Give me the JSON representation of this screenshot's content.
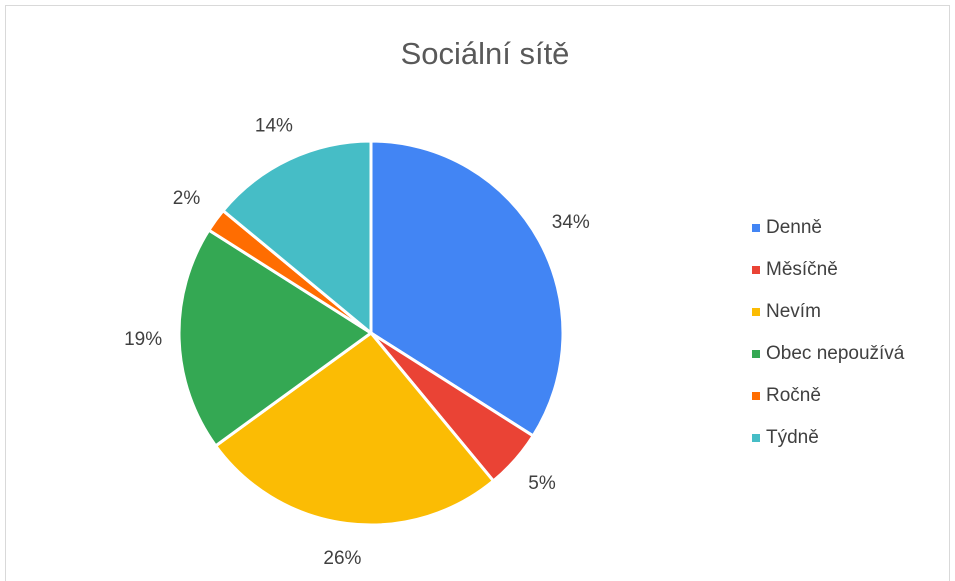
{
  "chart_data": {
    "type": "pie",
    "title": "Sociální sítě",
    "categories": [
      "Denně",
      "Měsíčně",
      "Nevím",
      "Obec nepoužívá",
      "Ročně",
      "Týdně"
    ],
    "values": [
      34,
      5,
      26,
      19,
      2,
      14
    ],
    "value_labels": [
      "34%",
      "5%",
      "26%",
      "19%",
      "2%",
      "14%"
    ],
    "colors": [
      "#4285f4",
      "#ea4335",
      "#fbbc04",
      "#34a853",
      "#ff6d01",
      "#46bdc6"
    ],
    "legend": "right"
  }
}
